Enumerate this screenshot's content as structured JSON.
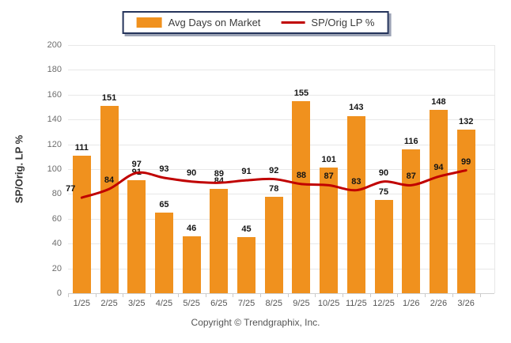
{
  "legend": {
    "items": [
      {
        "label": "Avg Days on Market",
        "type": "bar"
      },
      {
        "label": "SP/Orig LP %",
        "type": "line"
      }
    ]
  },
  "footer": {
    "text": "Copyright © Trendgraphix, Inc."
  },
  "colors": {
    "bar": "#f0911e",
    "line": "#c00000",
    "grid": "#e8e8e8",
    "baseline": "#cfcfcf",
    "value_label": "#151515",
    "axis_text": "#6d6d6d",
    "legend_border": "#24345b"
  },
  "chart_data": {
    "type": "bar",
    "title": "",
    "xlabel": "",
    "ylabel": "SP/Orig. LP %",
    "ylim": [
      0,
      200
    ],
    "yticks": [
      0,
      20,
      40,
      60,
      80,
      100,
      120,
      140,
      160,
      180,
      200
    ],
    "grid": true,
    "legend_position": "top",
    "categories": [
      "1/25",
      "2/25",
      "3/25",
      "4/25",
      "5/25",
      "6/25",
      "7/25",
      "8/25",
      "9/25",
      "10/25",
      "11/25",
      "12/25",
      "1/26",
      "2/26",
      "3/26"
    ],
    "series": [
      {
        "name": "Avg Days on Market",
        "type": "bar",
        "values": [
          111,
          151,
          91,
          65,
          46,
          84,
          45,
          78,
          155,
          101,
          143,
          75,
          116,
          148,
          132
        ]
      },
      {
        "name": "SP/Orig LP %",
        "type": "line",
        "values": [
          77,
          84,
          97,
          93,
          90,
          89,
          91,
          92,
          88,
          87,
          83,
          90,
          87,
          94,
          99
        ]
      }
    ]
  }
}
